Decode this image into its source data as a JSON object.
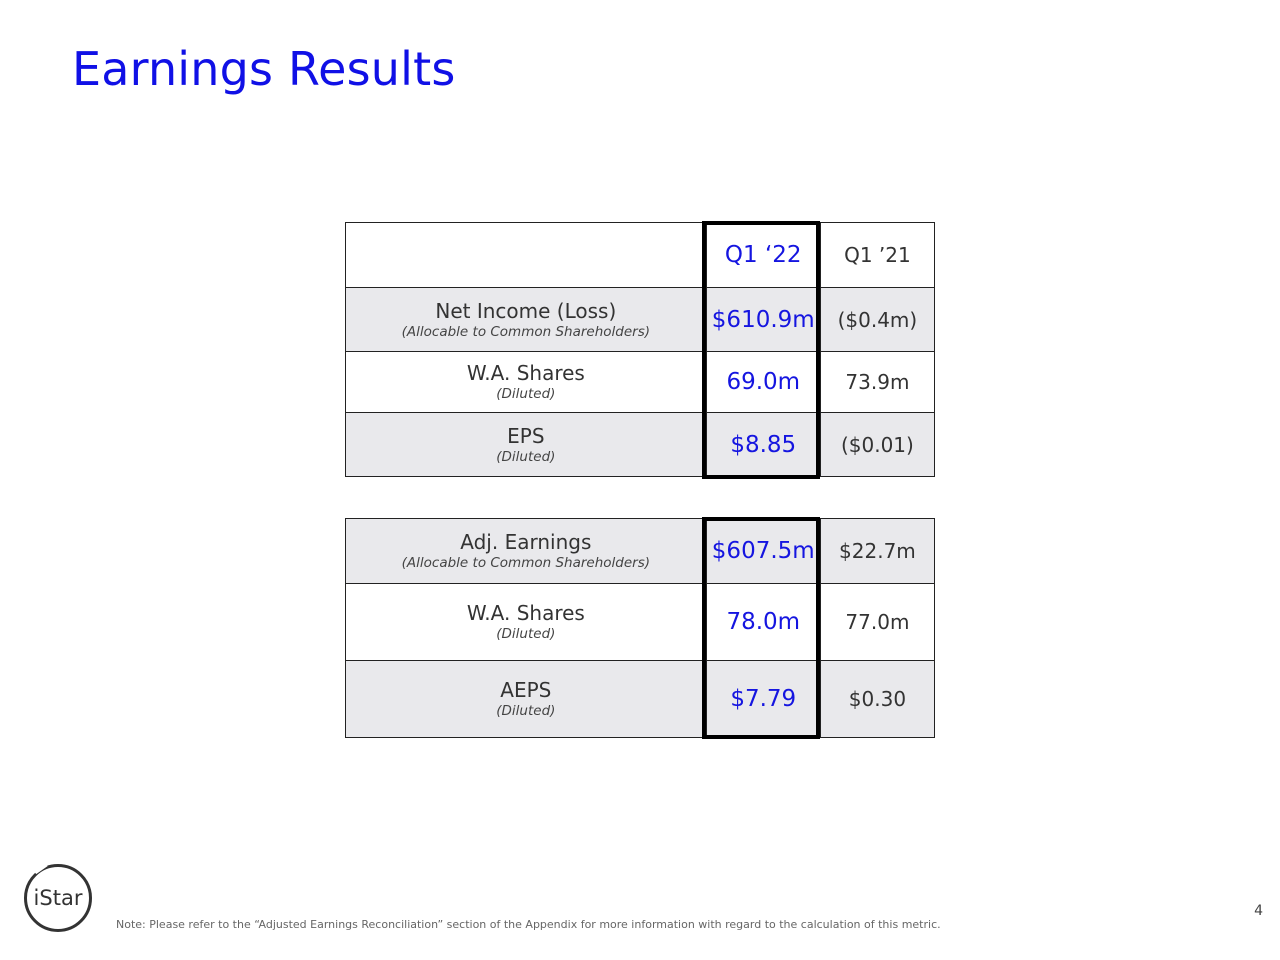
{
  "title": "Earnings Results",
  "table1": {
    "headers": [
      "",
      "Q1 ‘22",
      "Q1 ’21"
    ],
    "rows": [
      {
        "label": "Net Income (Loss)",
        "sublabel": "(Allocable to Common Shareholders)",
        "q1_22": "$610.9m",
        "q1_21": "($0.4m)"
      },
      {
        "label": "W.A. Shares",
        "sublabel": "(Diluted)",
        "q1_22": "69.0m",
        "q1_21": "73.9m"
      },
      {
        "label": "EPS",
        "sublabel": "(Diluted)",
        "q1_22": "$8.85",
        "q1_21": "($0.01)"
      }
    ]
  },
  "table2": {
    "rows": [
      {
        "label": "Adj. Earnings",
        "sublabel": "(Allocable to Common Shareholders)",
        "q1_22": "$607.5m",
        "q1_21": "$22.7m"
      },
      {
        "label": "W.A. Shares",
        "sublabel": "(Diluted)",
        "q1_22": "78.0m",
        "q1_21": "77.0m"
      },
      {
        "label": "AEPS",
        "sublabel": "(Diluted)",
        "q1_22": "$7.79",
        "q1_21": "$0.30"
      }
    ]
  },
  "logo": {
    "text": "iStar"
  },
  "footnote": "Note: Please refer to the “Adjusted Earnings Reconciliation” section of the Appendix for more information with regard to the calculation of this metric.",
  "page_number": "4",
  "colors": {
    "accent": "#1010e6",
    "row_shade": "#e9e9ec"
  }
}
